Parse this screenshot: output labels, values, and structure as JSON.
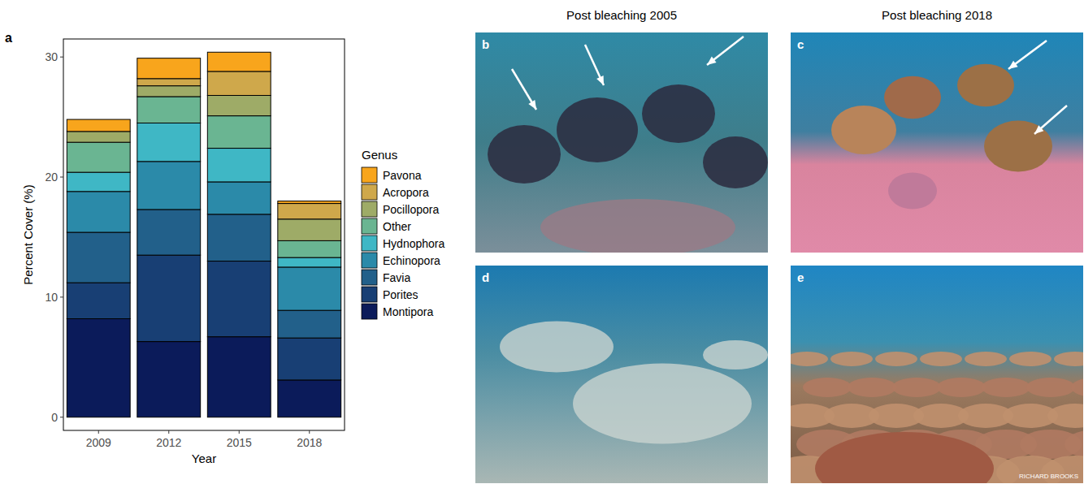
{
  "chart_data": {
    "type": "bar",
    "stacked": true,
    "panel_label": "a",
    "x_label": "Year",
    "y_label": "Percent Cover (%)",
    "legend_title": "Genus",
    "legend": "right",
    "categories": [
      "2009",
      "2012",
      "2015",
      "2018"
    ],
    "ylim": [
      -1.1,
      31.5
    ],
    "yticks": [
      0,
      10,
      20,
      30
    ],
    "grid": false,
    "series": [
      {
        "name": "Montipora",
        "color": "#0b1b5a",
        "values": [
          8.2,
          6.3,
          6.7,
          3.1
        ]
      },
      {
        "name": "Porites",
        "color": "#183f74",
        "values": [
          3.0,
          7.2,
          6.3,
          3.5
        ]
      },
      {
        "name": "Favia",
        "color": "#22608a",
        "values": [
          4.2,
          3.8,
          3.9,
          2.3
        ]
      },
      {
        "name": "Echinopora",
        "color": "#2b8aa9",
        "values": [
          3.4,
          4.0,
          2.7,
          3.6
        ]
      },
      {
        "name": "Hydnophora",
        "color": "#3fb7c5",
        "values": [
          1.6,
          3.2,
          2.8,
          0.8
        ]
      },
      {
        "name": "Other",
        "color": "#6ab592",
        "values": [
          2.5,
          2.2,
          2.7,
          1.4
        ]
      },
      {
        "name": "Pocillopora",
        "color": "#9eab67",
        "values": [
          0.9,
          0.9,
          1.7,
          1.8
        ]
      },
      {
        "name": "Acropora",
        "color": "#cfa84b",
        "values": [
          0.0,
          0.6,
          2.0,
          1.3
        ]
      },
      {
        "name": "Pavona",
        "color": "#f8a51c",
        "values": [
          1.0,
          1.7,
          1.6,
          0.2
        ]
      }
    ]
  },
  "photos": {
    "headers": [
      "Post bleaching 2005",
      "Post bleaching 2018"
    ],
    "panels": [
      {
        "label": "b"
      },
      {
        "label": "c"
      },
      {
        "label": "d"
      },
      {
        "label": "e",
        "watermark": "RICHARD BROOKS"
      }
    ]
  }
}
